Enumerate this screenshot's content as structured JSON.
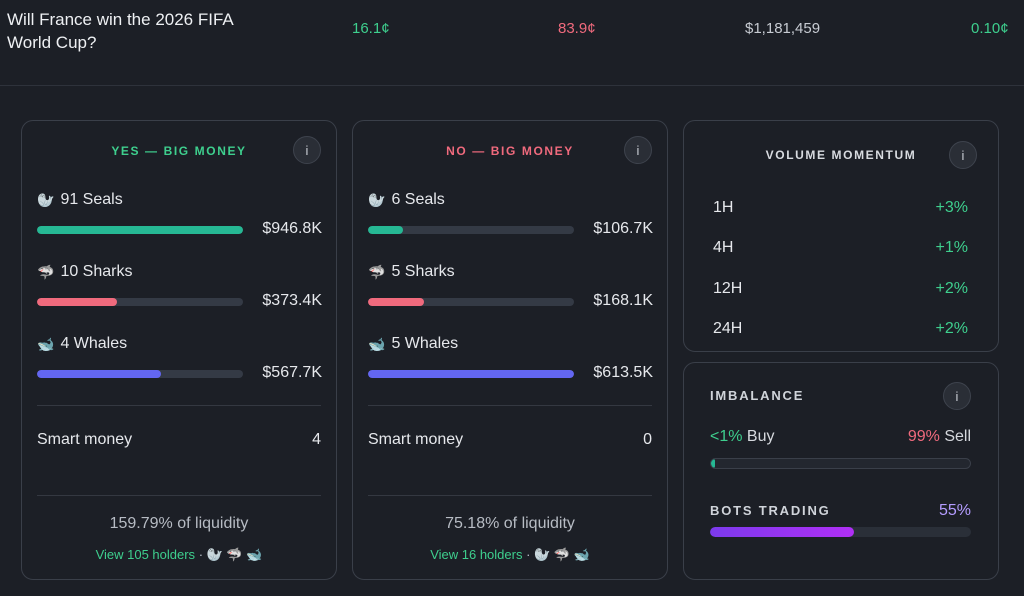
{
  "market": {
    "title": "Will France win the 2026 FIFA World Cup?",
    "yes_price": "16.1¢",
    "no_price": "83.9¢",
    "volume": "$1,181,459",
    "spread": "0.10¢"
  },
  "yes_card": {
    "heading": "YES — BIG MONEY",
    "info": "i",
    "rows": [
      {
        "icon": "🦭",
        "label": "91 Seals",
        "amount": "$946.8K",
        "fill": 1.0,
        "color": "#26b894"
      },
      {
        "icon": "🦈",
        "label": "10 Sharks",
        "amount": "$373.4K",
        "fill": 0.39,
        "color": "#f06a7d"
      },
      {
        "icon": "🐋",
        "label": "4 Whales",
        "amount": "$567.7K",
        "fill": 0.6,
        "color": "#6366f1"
      }
    ],
    "smart_money_label": "Smart money",
    "smart_money_value": "4",
    "liquidity": "159.79% of liquidity",
    "holders_link": "View 105 holders",
    "holders_icons": "· 🦭 🦈 🐋"
  },
  "no_card": {
    "heading": "NO — BIG MONEY",
    "info": "i",
    "rows": [
      {
        "icon": "🦭",
        "label": "6 Seals",
        "amount": "$106.7K",
        "fill": 0.17,
        "color": "#26b894"
      },
      {
        "icon": "🦈",
        "label": "5 Sharks",
        "amount": "$168.1K",
        "fill": 0.27,
        "color": "#f06a7d"
      },
      {
        "icon": "🐋",
        "label": "5 Whales",
        "amount": "$613.5K",
        "fill": 1.0,
        "color": "#6366f1"
      }
    ],
    "smart_money_label": "Smart money",
    "smart_money_value": "0",
    "liquidity": "75.18% of liquidity",
    "holders_link": "View 16 holders",
    "holders_icons": "· 🦭 🦈 🐋"
  },
  "volume_momentum": {
    "heading": "VOLUME MOMENTUM",
    "info": "i",
    "rows": [
      {
        "label": "1H",
        "value": "+3%"
      },
      {
        "label": "4H",
        "value": "+1%"
      },
      {
        "label": "12H",
        "value": "+2%"
      },
      {
        "label": "24H",
        "value": "+2%"
      }
    ]
  },
  "imbalance": {
    "heading": "IMBALANCE",
    "info": "i",
    "buy_value": "<1%",
    "buy_label": "Buy",
    "sell_value": "99%",
    "sell_label": "Sell",
    "buy_fraction": 0.01,
    "bots_heading": "BOTS TRADING",
    "bots_value": "55%",
    "bots_fraction": 0.55
  }
}
